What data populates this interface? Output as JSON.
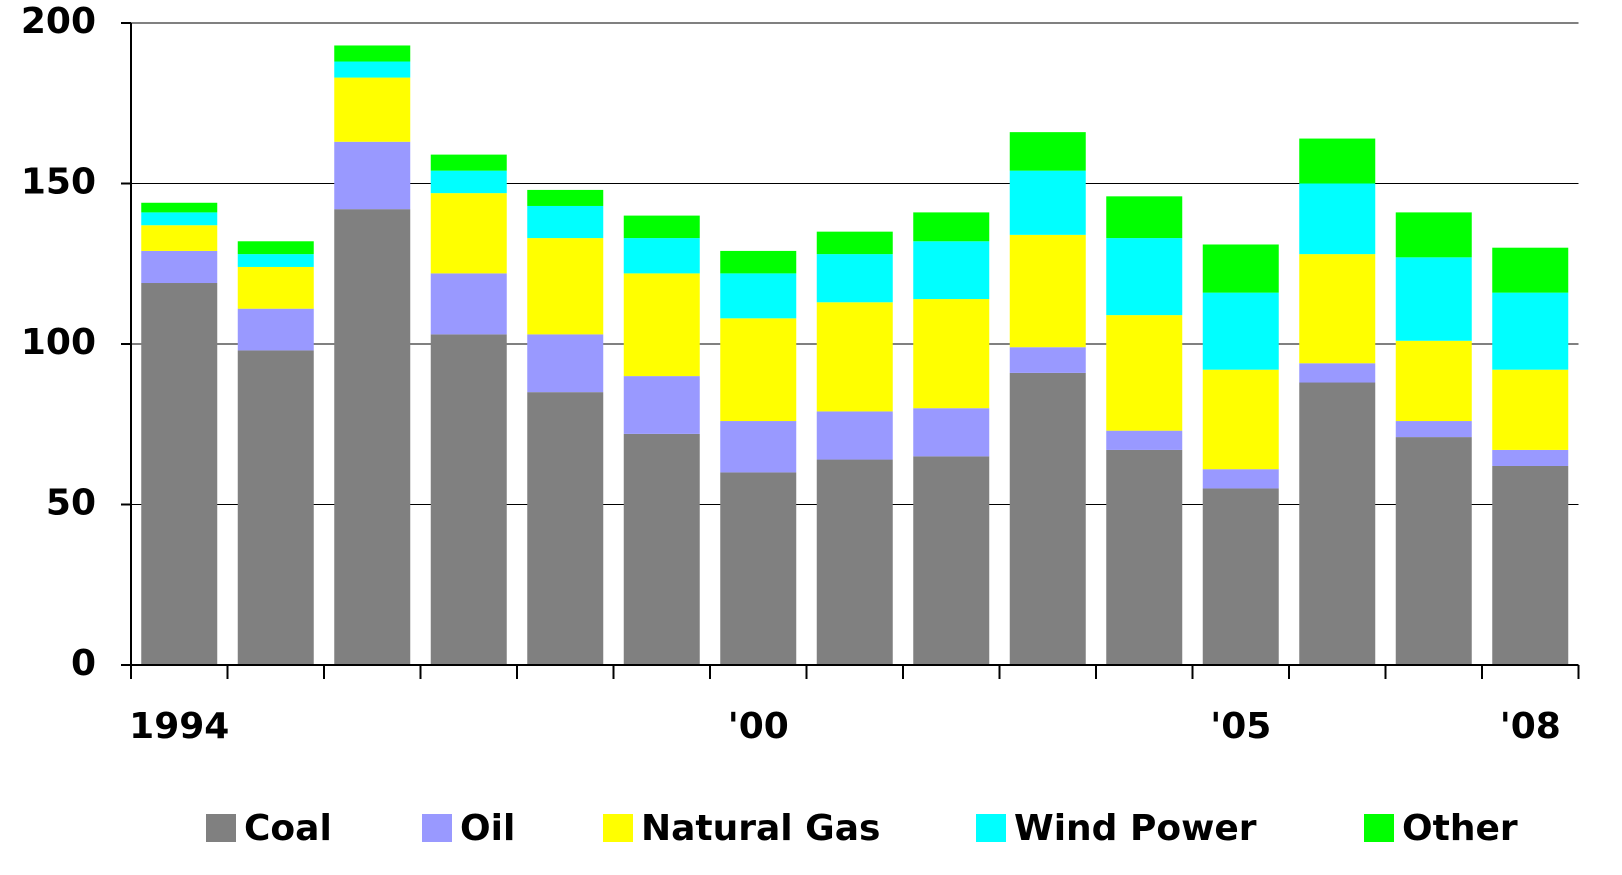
{
  "chart_data": {
    "type": "stacked_bar",
    "categories": [
      "1994",
      null,
      null,
      null,
      null,
      null,
      "'00",
      null,
      null,
      null,
      null,
      "'05",
      null,
      null,
      "'08"
    ],
    "series": [
      {
        "name": "Coal",
        "color": "#808080",
        "values": [
          119,
          98,
          142,
          103,
          85,
          72,
          60,
          64,
          65,
          91,
          67,
          55,
          88,
          71,
          62
        ]
      },
      {
        "name": "Oil",
        "color": "#9999ff",
        "values": [
          10,
          13,
          21,
          19,
          18,
          18,
          16,
          15,
          15,
          8,
          6,
          6,
          6,
          5,
          5
        ]
      },
      {
        "name": "Natural Gas",
        "color": "#ffff00",
        "values": [
          8,
          13,
          20,
          25,
          30,
          32,
          32,
          34,
          34,
          35,
          36,
          31,
          34,
          25,
          25
        ]
      },
      {
        "name": "Wind Power",
        "color": "#00ffff",
        "values": [
          4,
          4,
          5,
          7,
          10,
          11,
          14,
          15,
          18,
          20,
          24,
          24,
          22,
          26,
          24
        ]
      },
      {
        "name": "Other",
        "color": "#00ff00",
        "values": [
          3,
          4,
          5,
          5,
          5,
          7,
          7,
          7,
          9,
          12,
          13,
          15,
          14,
          14,
          14
        ]
      }
    ],
    "ylim": [
      0,
      200
    ],
    "yticks": [
      0,
      50,
      100,
      150,
      200
    ],
    "grid": true,
    "legend": "bottom"
  }
}
